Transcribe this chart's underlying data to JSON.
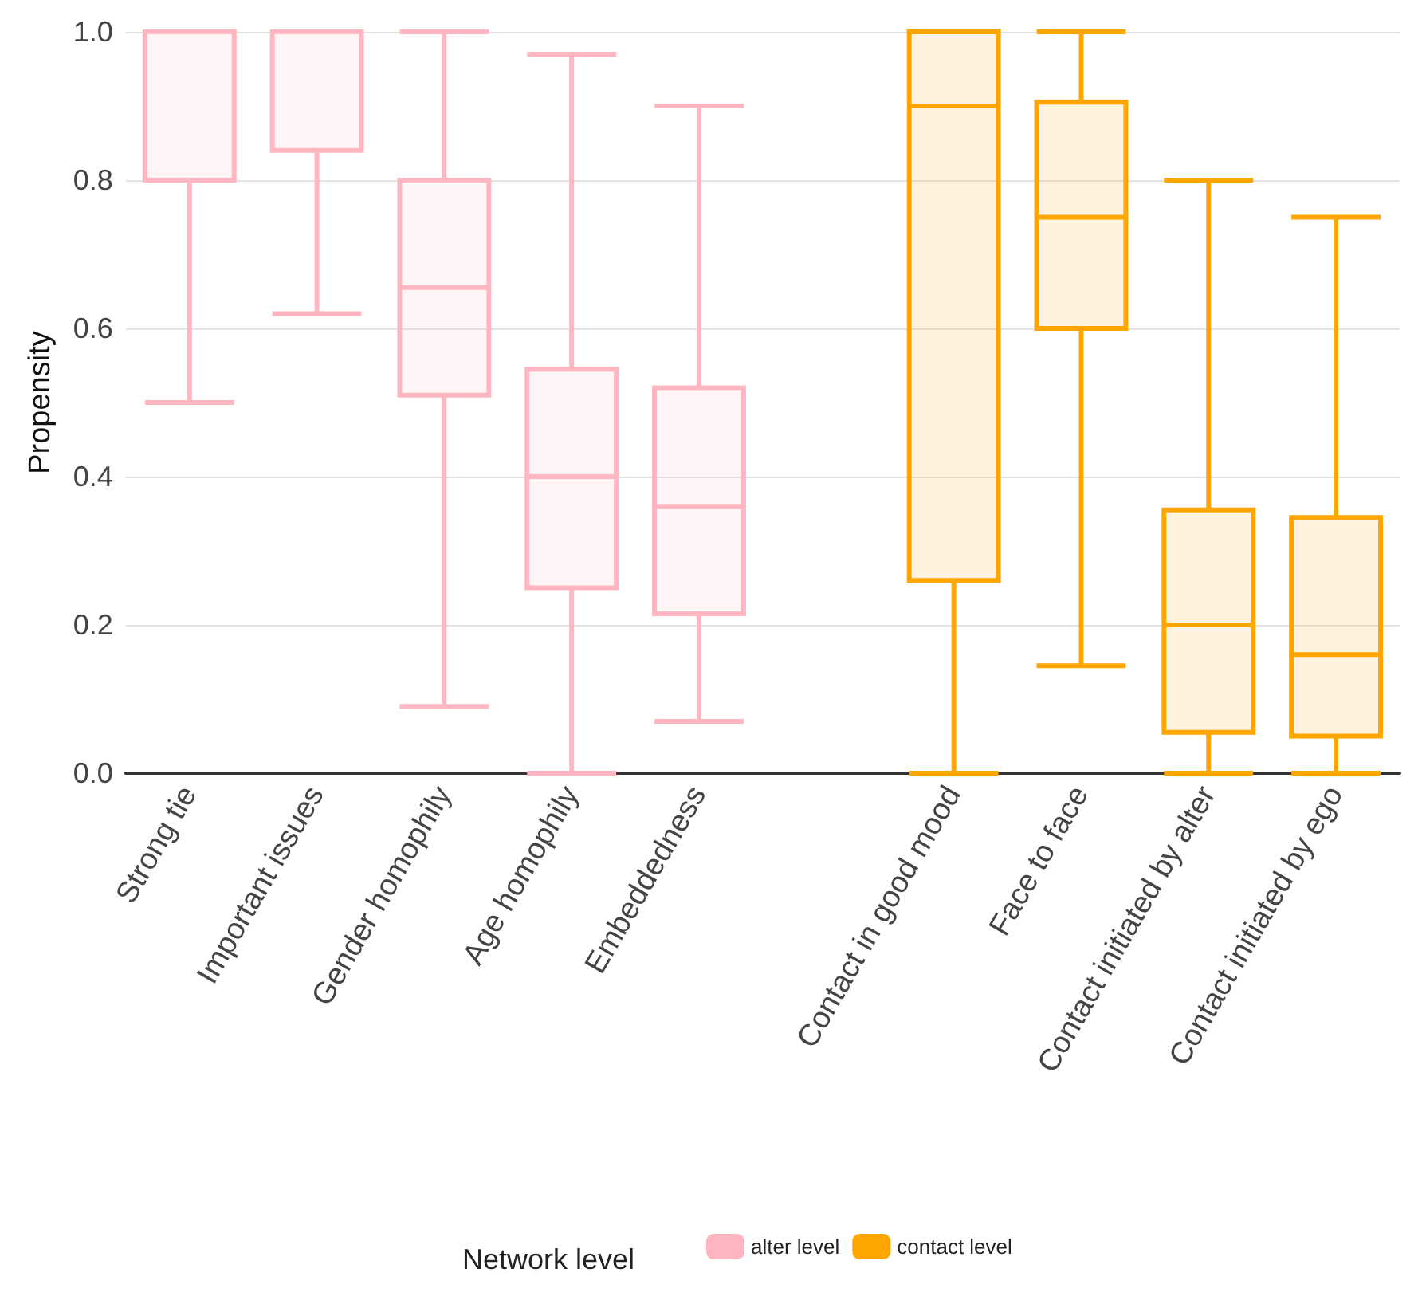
{
  "chart_data": {
    "type": "box",
    "ylabel": "Propensity",
    "legend_title": "Network level",
    "legend": "bottom",
    "grid": "y",
    "categories": [
      "Strong tie",
      "Important issues",
      "Gender homophily",
      "Age homophily",
      "Embeddedness",
      null,
      "Contact in good mood",
      "Face to face",
      "Contact initiated by alter",
      "Contact initiated by ego"
    ],
    "ylim": [
      0,
      1
    ],
    "yticks": [
      {
        "value": 0,
        "label": "0.0"
      },
      {
        "value": 0.2,
        "label": "0.2"
      },
      {
        "value": 0.4,
        "label": "0.4"
      },
      {
        "value": 0.6,
        "label": "0.6"
      },
      {
        "value": 0.8,
        "label": "0.8"
      },
      {
        "value": 1,
        "label": "1.0"
      }
    ],
    "series": [
      {
        "name": "alter level",
        "color": "#ffb6c1",
        "boxes": [
          {
            "low": 0.5,
            "q1": 0.8,
            "median": 1.0,
            "q3": 1.0,
            "high": 1.0
          },
          {
            "low": 0.62,
            "q1": 0.84,
            "median": 1.0,
            "q3": 1.0,
            "high": 1.0
          },
          {
            "low": 0.09,
            "q1": 0.51,
            "median": 0.655,
            "q3": 0.8,
            "high": 1.0
          },
          {
            "low": 0,
            "q1": 0.25,
            "median": 0.4,
            "q3": 0.545,
            "high": 0.97
          },
          {
            "low": 0.07,
            "q1": 0.215,
            "median": 0.36,
            "q3": 0.52,
            "high": 0.9
          },
          null,
          null,
          null,
          null,
          null
        ]
      },
      {
        "name": "contact level",
        "color": "#ffa500",
        "boxes": [
          null,
          null,
          null,
          null,
          null,
          null,
          {
            "low": 0,
            "q1": 0.26,
            "median": 0.9,
            "q3": 1.0,
            "high": 1.0
          },
          {
            "low": 0.145,
            "q1": 0.6,
            "median": 0.75,
            "q3": 0.905,
            "high": 1.0
          },
          {
            "low": 0,
            "q1": 0.055,
            "median": 0.2,
            "q3": 0.355,
            "high": 0.8
          },
          {
            "low": 0,
            "q1": 0.05,
            "median": 0.16,
            "q3": 0.345,
            "high": 0.75
          }
        ]
      }
    ]
  }
}
